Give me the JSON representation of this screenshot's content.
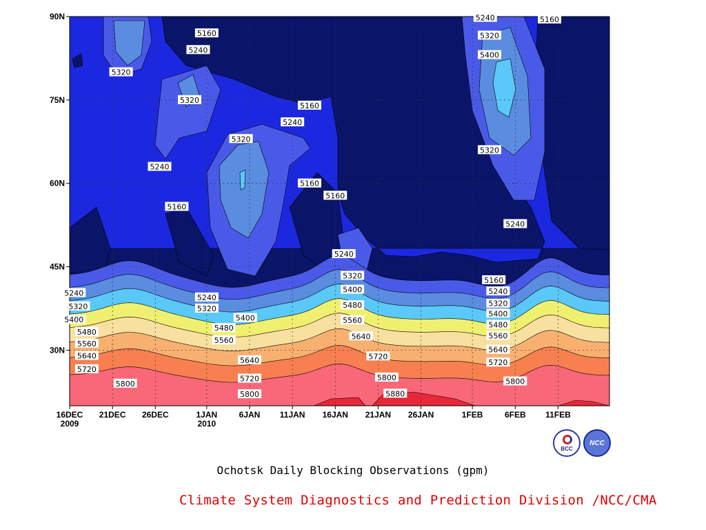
{
  "chart_data": {
    "type": "heatmap",
    "subtype": "filled-contour",
    "title": "Ochotsk Daily Blocking Observations (gpm)",
    "credit": "Climate System Diagnostics and Prediction Division /NCC/CMA",
    "x_ticks": [
      {
        "label": "16DEC",
        "sub": "2009",
        "day": 0
      },
      {
        "label": "21DEC",
        "day": 5
      },
      {
        "label": "26DEC",
        "day": 10
      },
      {
        "label": "1JAN",
        "sub": "2010",
        "day": 16
      },
      {
        "label": "6JAN",
        "day": 21
      },
      {
        "label": "11JAN",
        "day": 26
      },
      {
        "label": "16JAN",
        "day": 31
      },
      {
        "label": "21JAN",
        "day": 36
      },
      {
        "label": "26JAN",
        "day": 41
      },
      {
        "label": "1FEB",
        "day": 47
      },
      {
        "label": "6FEB",
        "day": 52
      },
      {
        "label": "11FEB",
        "day": 57
      }
    ],
    "x_range_days": [
      0,
      63
    ],
    "y_ticks": [
      {
        "label": "30N",
        "lat": 30
      },
      {
        "label": "45N",
        "lat": 45
      },
      {
        "label": "60N",
        "lat": 60
      },
      {
        "label": "75N",
        "lat": 75
      },
      {
        "label": "90N",
        "lat": 90
      }
    ],
    "y_range_lat": [
      20,
      90
    ],
    "grid": true,
    "levels": [
      5160,
      5240,
      5320,
      5400,
      5480,
      5560,
      5640,
      5720,
      5800,
      5880
    ],
    "colors": {
      "below_5160": "#0a1468",
      "5160_5240": "#1c28e0",
      "5240_5320": "#4a5ae8",
      "5320_5400": "#5a8ce0",
      "5400_5480": "#5ac8f8",
      "5480_5560": "#f0f070",
      "5560_5640": "#f8e0a0",
      "5640_5720": "#f8b070",
      "5720_5800": "#f88050",
      "5800_5880": "#f86878",
      "above_5880": "#e82838"
    },
    "contour_labels": [
      {
        "value": "5160",
        "day": 16,
        "lat": 87
      },
      {
        "value": "5240",
        "day": 15,
        "lat": 84
      },
      {
        "value": "5320",
        "day": 6,
        "lat": 80
      },
      {
        "value": "5320",
        "day": 14,
        "lat": 75
      },
      {
        "value": "5160",
        "day": 28,
        "lat": 74
      },
      {
        "value": "5240",
        "day": 26,
        "lat": 71
      },
      {
        "value": "5320",
        "day": 20,
        "lat": 68
      },
      {
        "value": "5240",
        "day": 10.5,
        "lat": 63
      },
      {
        "value": "5160",
        "day": 28,
        "lat": 60
      },
      {
        "value": "5160",
        "day": 31,
        "lat": 57.8
      },
      {
        "value": "5160",
        "day": 12.5,
        "lat": 55.8
      },
      {
        "value": "5240",
        "day": 32,
        "lat": 47.3
      },
      {
        "value": "5320",
        "day": 33,
        "lat": 43.4
      },
      {
        "value": "5400",
        "day": 33,
        "lat": 40.9
      },
      {
        "value": "5480",
        "day": 33,
        "lat": 38.1
      },
      {
        "value": "5560",
        "day": 33,
        "lat": 35.4
      },
      {
        "value": "5640",
        "day": 34,
        "lat": 32.5
      },
      {
        "value": "5720",
        "day": 36,
        "lat": 28.9
      },
      {
        "value": "5800",
        "day": 37,
        "lat": 25.1
      },
      {
        "value": "5880",
        "day": 38,
        "lat": 22.2
      },
      {
        "value": "5240",
        "day": 48.5,
        "lat": 89.8
      },
      {
        "value": "5160",
        "day": 56,
        "lat": 89.5
      },
      {
        "value": "5320",
        "day": 49,
        "lat": 86.6
      },
      {
        "value": "5400",
        "day": 49,
        "lat": 83.1
      },
      {
        "value": "5320",
        "day": 49,
        "lat": 66
      },
      {
        "value": "5240",
        "day": 52,
        "lat": 52.7
      },
      {
        "value": "5160",
        "day": 49.5,
        "lat": 42.6
      },
      {
        "value": "5240",
        "day": 50,
        "lat": 40.6
      },
      {
        "value": "5320",
        "day": 50,
        "lat": 38.4
      },
      {
        "value": "5400",
        "day": 50,
        "lat": 36.6
      },
      {
        "value": "5480",
        "day": 50,
        "lat": 34.6
      },
      {
        "value": "5560",
        "day": 50,
        "lat": 32.6
      },
      {
        "value": "5640",
        "day": 50,
        "lat": 30.1
      },
      {
        "value": "5720",
        "day": 50,
        "lat": 27.8
      },
      {
        "value": "5800",
        "day": 52,
        "lat": 24.4
      },
      {
        "value": "5240",
        "day": 16,
        "lat": 39.5
      },
      {
        "value": "5320",
        "day": 16,
        "lat": 37.5
      },
      {
        "value": "5400",
        "day": 20.5,
        "lat": 35.8
      },
      {
        "value": "5480",
        "day": 18,
        "lat": 34
      },
      {
        "value": "5560",
        "day": 18,
        "lat": 31.8
      },
      {
        "value": "5640",
        "day": 21,
        "lat": 28.2
      },
      {
        "value": "5720",
        "day": 21,
        "lat": 24.9
      },
      {
        "value": "5800",
        "day": 21,
        "lat": 22.1
      },
      {
        "value": "5240",
        "day": 0.5,
        "lat": 40.3
      },
      {
        "value": "5320",
        "day": 1,
        "lat": 37.9
      },
      {
        "value": "5400",
        "day": 0.5,
        "lat": 35.5
      },
      {
        "value": "5480",
        "day": 2,
        "lat": 33.3
      },
      {
        "value": "5560",
        "day": 2,
        "lat": 31.2
      },
      {
        "value": "5640",
        "day": 2,
        "lat": 29
      },
      {
        "value": "5720",
        "day": 2,
        "lat": 26.6
      },
      {
        "value": "5800",
        "day": 6.5,
        "lat": 24
      }
    ]
  },
  "logos": {
    "bcc_text": "BCC",
    "ncc_text": "NCC"
  }
}
